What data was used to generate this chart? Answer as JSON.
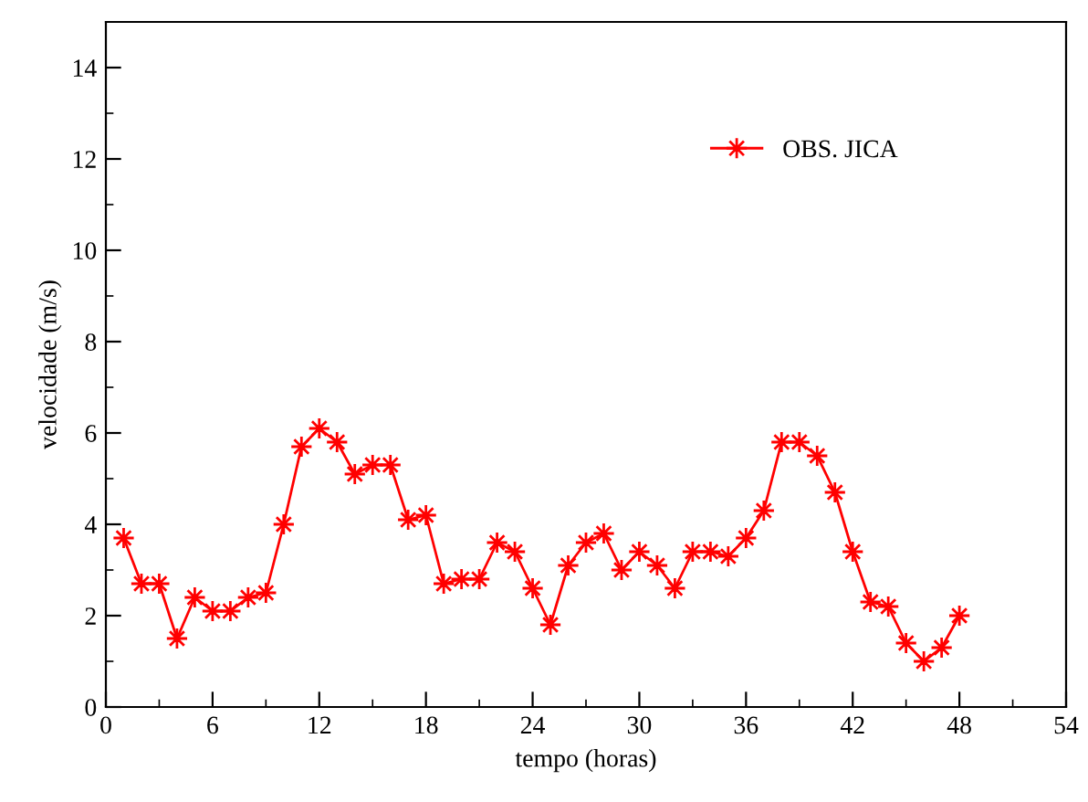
{
  "chart_data": {
    "type": "line",
    "xlabel": "tempo (horas)",
    "ylabel": "velocidade (m/s)",
    "x": [
      1,
      2,
      3,
      4,
      5,
      6,
      7,
      8,
      9,
      10,
      11,
      12,
      13,
      14,
      15,
      16,
      17,
      18,
      19,
      20,
      21,
      22,
      23,
      24,
      25,
      26,
      27,
      28,
      29,
      30,
      31,
      32,
      33,
      34,
      35,
      36,
      37,
      38,
      39,
      40,
      41,
      42,
      43,
      44,
      45,
      46,
      47,
      48
    ],
    "series": [
      {
        "name": "OBS. JICA",
        "color": "#ff0000",
        "values": [
          3.7,
          2.7,
          2.7,
          1.5,
          2.4,
          2.1,
          2.1,
          2.4,
          2.5,
          4.0,
          5.7,
          6.1,
          5.8,
          5.1,
          5.3,
          5.3,
          4.1,
          4.2,
          2.7,
          2.8,
          2.8,
          3.6,
          3.4,
          2.6,
          1.8,
          3.1,
          3.6,
          3.8,
          3.0,
          3.4,
          3.1,
          2.6,
          3.4,
          3.4,
          3.3,
          3.7,
          4.3,
          5.8,
          5.8,
          5.5,
          4.7,
          3.4,
          2.3,
          2.2,
          1.4,
          1.0,
          1.3,
          2.0
        ]
      }
    ],
    "xlim": [
      0,
      54
    ],
    "xticks": [
      0,
      6,
      12,
      18,
      24,
      30,
      36,
      42,
      48,
      54
    ],
    "ylim": [
      0,
      15
    ],
    "yticks": [
      0,
      2,
      4,
      6,
      8,
      10,
      12,
      14
    ],
    "marker": "star",
    "line_style": "solid",
    "grid": false,
    "legend": "top right"
  }
}
